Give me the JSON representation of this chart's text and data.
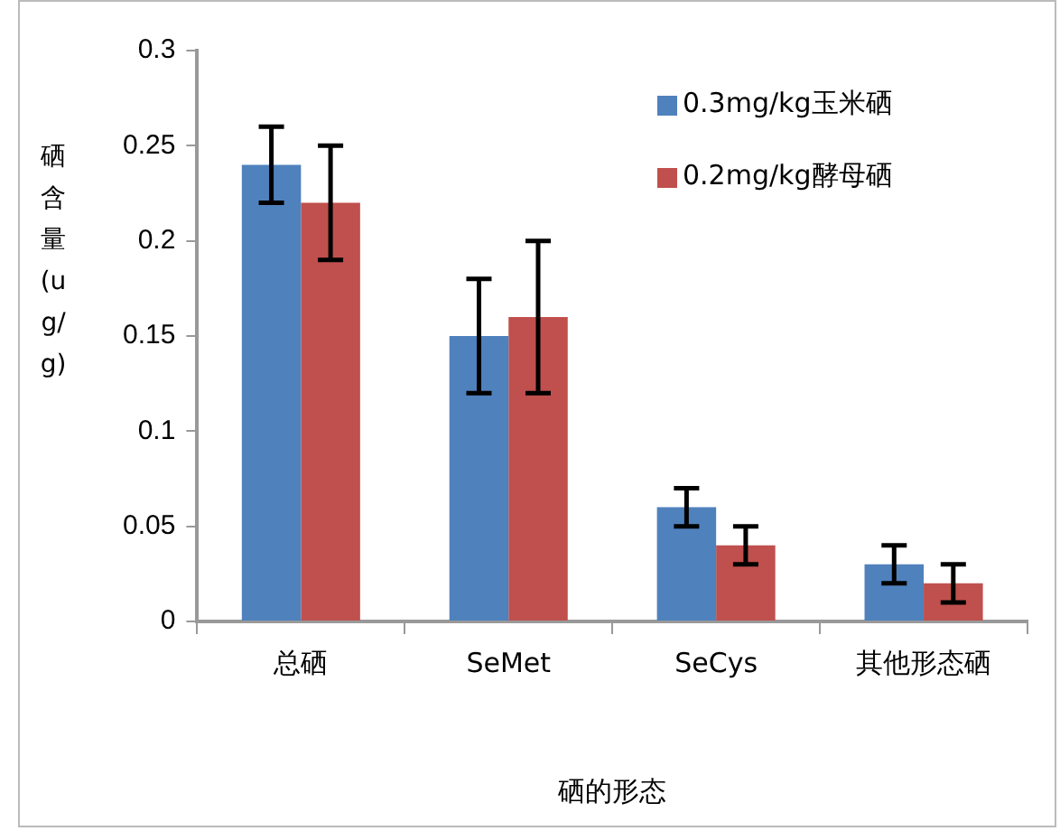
{
  "chart_data": {
    "type": "bar",
    "xlabel": "硒的形态",
    "ylabel": "硒含量(ug/g)",
    "categories": [
      "总硒",
      "SeMet",
      "SeCys",
      "其他形态硒"
    ],
    "series": [
      {
        "name": "0.3mg/kg玉米硒",
        "color": "#4f81bd",
        "values": [
          0.24,
          0.15,
          0.06,
          0.03
        ],
        "errors": [
          0.02,
          0.03,
          0.01,
          0.01
        ]
      },
      {
        "name": "0.2mg/kg酵母硒",
        "color": "#c0504d",
        "values": [
          0.22,
          0.16,
          0.04,
          0.02
        ],
        "errors": [
          [
            0.19,
            0.25
          ],
          [
            0.12,
            0.2
          ],
          0.01,
          0.01
        ]
      }
    ],
    "ylim": [
      0,
      0.3
    ],
    "yticks": [
      0,
      0.05,
      0.1,
      0.15,
      0.2,
      0.25,
      0.3
    ],
    "grid": false,
    "legend": "top right"
  }
}
